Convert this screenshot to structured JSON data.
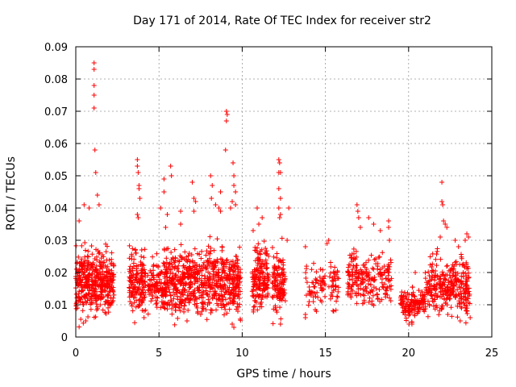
{
  "chart_data": {
    "type": "scatter",
    "title": "Day 171 of 2014, Rate Of TEC Index for receiver str2",
    "xlabel": "GPS time / hours",
    "ylabel": "ROTI / TECUs",
    "xlim": [
      0,
      25
    ],
    "ylim": [
      0,
      0.09
    ],
    "grid": true,
    "marker": "+",
    "color": "#ff0000",
    "x_ticks": [
      "0",
      "5",
      "10",
      "15",
      "20",
      "25"
    ],
    "y_ticks": [
      "0",
      "0.01",
      "0.02",
      "0.03",
      "0.04",
      "0.05",
      "0.06",
      "0.07",
      "0.08",
      "0.09"
    ],
    "clusters": [
      {
        "x_range": [
          0.0,
          2.3
        ],
        "y_center": 0.017,
        "spread": 0.006,
        "count": 420
      },
      {
        "x_range": [
          3.2,
          4.2
        ],
        "y_center": 0.017,
        "spread": 0.006,
        "count": 160
      },
      {
        "x_range": [
          4.3,
          5.2
        ],
        "y_center": 0.015,
        "spread": 0.005,
        "count": 90
      },
      {
        "x_range": [
          5.2,
          9.9
        ],
        "y_center": 0.017,
        "spread": 0.006,
        "count": 700
      },
      {
        "x_range": [
          10.6,
          11.6
        ],
        "y_center": 0.019,
        "spread": 0.006,
        "count": 170
      },
      {
        "x_range": [
          11.8,
          12.6
        ],
        "y_center": 0.016,
        "spread": 0.006,
        "count": 120
      },
      {
        "x_range": [
          13.8,
          15.0
        ],
        "y_center": 0.016,
        "spread": 0.004,
        "count": 60
      },
      {
        "x_range": [
          15.2,
          15.8
        ],
        "y_center": 0.016,
        "spread": 0.005,
        "count": 40
      },
      {
        "x_range": [
          16.3,
          19.0
        ],
        "y_center": 0.018,
        "spread": 0.005,
        "count": 210
      },
      {
        "x_range": [
          19.5,
          21.0
        ],
        "y_center": 0.01,
        "spread": 0.003,
        "count": 140
      },
      {
        "x_range": [
          21.0,
          22.8
        ],
        "y_center": 0.016,
        "spread": 0.005,
        "count": 200
      },
      {
        "x_range": [
          22.8,
          23.7
        ],
        "y_center": 0.016,
        "spread": 0.006,
        "count": 110
      }
    ],
    "outliers": [
      {
        "x": 1.1,
        "y": 0.085
      },
      {
        "x": 1.1,
        "y": 0.083
      },
      {
        "x": 1.1,
        "y": 0.078
      },
      {
        "x": 1.1,
        "y": 0.075
      },
      {
        "x": 1.1,
        "y": 0.071
      },
      {
        "x": 1.15,
        "y": 0.058
      },
      {
        "x": 1.2,
        "y": 0.051
      },
      {
        "x": 1.3,
        "y": 0.044
      },
      {
        "x": 1.4,
        "y": 0.041
      },
      {
        "x": 0.5,
        "y": 0.041
      },
      {
        "x": 0.8,
        "y": 0.04
      },
      {
        "x": 0.2,
        "y": 0.036
      },
      {
        "x": 3.7,
        "y": 0.055
      },
      {
        "x": 3.7,
        "y": 0.053
      },
      {
        "x": 3.75,
        "y": 0.051
      },
      {
        "x": 3.8,
        "y": 0.047
      },
      {
        "x": 3.8,
        "y": 0.046
      },
      {
        "x": 3.85,
        "y": 0.043
      },
      {
        "x": 3.7,
        "y": 0.038
      },
      {
        "x": 3.75,
        "y": 0.037
      },
      {
        "x": 5.3,
        "y": 0.049
      },
      {
        "x": 5.3,
        "y": 0.045
      },
      {
        "x": 5.1,
        "y": 0.04
      },
      {
        "x": 5.5,
        "y": 0.038
      },
      {
        "x": 5.4,
        "y": 0.034
      },
      {
        "x": 5.7,
        "y": 0.053
      },
      {
        "x": 5.75,
        "y": 0.05
      },
      {
        "x": 6.3,
        "y": 0.039
      },
      {
        "x": 6.3,
        "y": 0.035
      },
      {
        "x": 7.0,
        "y": 0.048
      },
      {
        "x": 7.1,
        "y": 0.043
      },
      {
        "x": 7.2,
        "y": 0.042
      },
      {
        "x": 7.1,
        "y": 0.039
      },
      {
        "x": 8.1,
        "y": 0.05
      },
      {
        "x": 8.2,
        "y": 0.047
      },
      {
        "x": 8.15,
        "y": 0.043
      },
      {
        "x": 8.4,
        "y": 0.041
      },
      {
        "x": 8.7,
        "y": 0.045
      },
      {
        "x": 8.6,
        "y": 0.04
      },
      {
        "x": 8.7,
        "y": 0.039
      },
      {
        "x": 9.0,
        "y": 0.058
      },
      {
        "x": 9.05,
        "y": 0.07
      },
      {
        "x": 9.1,
        "y": 0.069
      },
      {
        "x": 9.05,
        "y": 0.067
      },
      {
        "x": 9.45,
        "y": 0.054
      },
      {
        "x": 9.5,
        "y": 0.05
      },
      {
        "x": 9.5,
        "y": 0.047
      },
      {
        "x": 9.6,
        "y": 0.045
      },
      {
        "x": 9.4,
        "y": 0.042
      },
      {
        "x": 9.6,
        "y": 0.041
      },
      {
        "x": 9.3,
        "y": 0.04
      },
      {
        "x": 10.9,
        "y": 0.04
      },
      {
        "x": 11.2,
        "y": 0.037
      },
      {
        "x": 11.0,
        "y": 0.035
      },
      {
        "x": 12.2,
        "y": 0.055
      },
      {
        "x": 12.25,
        "y": 0.054
      },
      {
        "x": 12.2,
        "y": 0.051
      },
      {
        "x": 12.3,
        "y": 0.051
      },
      {
        "x": 12.2,
        "y": 0.046
      },
      {
        "x": 12.3,
        "y": 0.043
      },
      {
        "x": 12.2,
        "y": 0.04
      },
      {
        "x": 12.3,
        "y": 0.038
      },
      {
        "x": 12.25,
        "y": 0.037
      },
      {
        "x": 12.8,
        "y": 0.04
      },
      {
        "x": 12.7,
        "y": 0.03
      },
      {
        "x": 13.8,
        "y": 0.007
      },
      {
        "x": 13.8,
        "y": 0.006
      },
      {
        "x": 13.8,
        "y": 0.028
      },
      {
        "x": 15.1,
        "y": 0.029
      },
      {
        "x": 15.2,
        "y": 0.03
      },
      {
        "x": 15.5,
        "y": 0.008
      },
      {
        "x": 16.9,
        "y": 0.041
      },
      {
        "x": 16.95,
        "y": 0.039
      },
      {
        "x": 17.0,
        "y": 0.037
      },
      {
        "x": 17.1,
        "y": 0.034
      },
      {
        "x": 17.6,
        "y": 0.037
      },
      {
        "x": 17.9,
        "y": 0.035
      },
      {
        "x": 18.3,
        "y": 0.033
      },
      {
        "x": 18.8,
        "y": 0.036
      },
      {
        "x": 18.8,
        "y": 0.034
      },
      {
        "x": 18.85,
        "y": 0.03
      },
      {
        "x": 20.4,
        "y": 0.02
      },
      {
        "x": 20.8,
        "y": 0.014
      },
      {
        "x": 22.0,
        "y": 0.048
      },
      {
        "x": 22.0,
        "y": 0.042
      },
      {
        "x": 22.05,
        "y": 0.041
      },
      {
        "x": 22.1,
        "y": 0.036
      },
      {
        "x": 22.2,
        "y": 0.035
      },
      {
        "x": 22.3,
        "y": 0.034
      },
      {
        "x": 21.9,
        "y": 0.031
      },
      {
        "x": 22.8,
        "y": 0.03
      },
      {
        "x": 23.0,
        "y": 0.028
      },
      {
        "x": 23.5,
        "y": 0.032
      },
      {
        "x": 23.6,
        "y": 0.031
      },
      {
        "x": 23.4,
        "y": 0.03
      },
      {
        "x": 23.1,
        "y": 0.005
      },
      {
        "x": 9.5,
        "y": 0.003
      },
      {
        "x": 9.4,
        "y": 0.004
      },
      {
        "x": 0.6,
        "y": 0.005
      },
      {
        "x": 12.3,
        "y": 0.004
      },
      {
        "x": 20.2,
        "y": 0.004
      },
      {
        "x": 23.7,
        "y": 0.006
      }
    ]
  }
}
